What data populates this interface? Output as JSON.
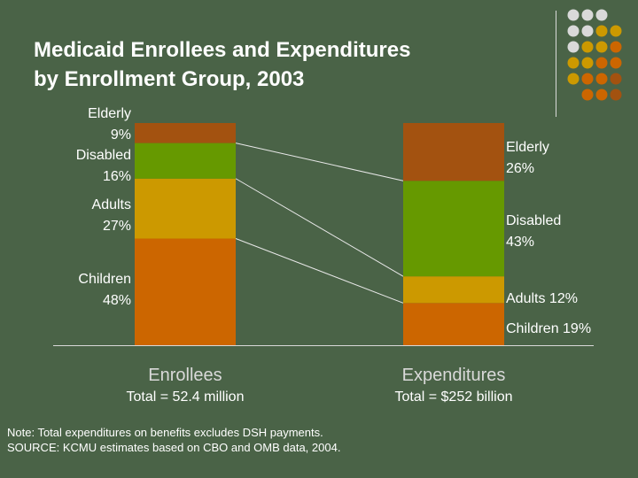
{
  "slide": {
    "title_line1": "Medicaid Enrollees and Expenditures",
    "title_line2": "by Enrollment Group, 2003",
    "note_line1": "Note: Total expenditures on benefits excludes DSH payments.",
    "note_line2": "SOURCE: KCMU estimates based on CBO and OMB data, 2004."
  },
  "colors": {
    "background": "#4a6347",
    "elderly": "#a35210",
    "disabled": "#669900",
    "adults": "#cc9900",
    "children": "#cc6600",
    "label_text": "#ffffff",
    "axis_label": "#d9d9d9",
    "connector": "#e8e8e8"
  },
  "chart_data": {
    "type": "stacked-bar",
    "categories": [
      "Enrollees",
      "Expenditures"
    ],
    "category_totals": [
      "Total = 52.4 million",
      "Total = $252 billion"
    ],
    "units": "%",
    "ylim": [
      0,
      100
    ],
    "stack_order_bottom_to_top": [
      "Children",
      "Adults",
      "Disabled",
      "Elderly"
    ],
    "series": [
      {
        "name": "Children",
        "values": [
          48,
          19
        ],
        "color_key": "children"
      },
      {
        "name": "Adults",
        "values": [
          27,
          12
        ],
        "color_key": "adults"
      },
      {
        "name": "Disabled",
        "values": [
          16,
          43
        ],
        "color_key": "disabled"
      },
      {
        "name": "Elderly",
        "values": [
          9,
          26
        ],
        "color_key": "elderly"
      }
    ],
    "enrollee_labels": [
      {
        "series": "Elderly",
        "name": "Elderly",
        "value": "9%"
      },
      {
        "series": "Disabled",
        "name": "Disabled",
        "value": "16%"
      },
      {
        "series": "Adults",
        "name": "Adults",
        "value": "27%"
      },
      {
        "series": "Children",
        "name": "Children",
        "value": "48%"
      }
    ],
    "expenditure_labels": [
      {
        "series": "Elderly",
        "lines": [
          "Elderly",
          "26%"
        ]
      },
      {
        "series": "Disabled",
        "lines": [
          "Disabled",
          "43%"
        ]
      },
      {
        "series": "Adults",
        "lines": [
          "Adults 12%"
        ]
      },
      {
        "series": "Children",
        "lines": [
          "Children 19%"
        ]
      }
    ]
  }
}
